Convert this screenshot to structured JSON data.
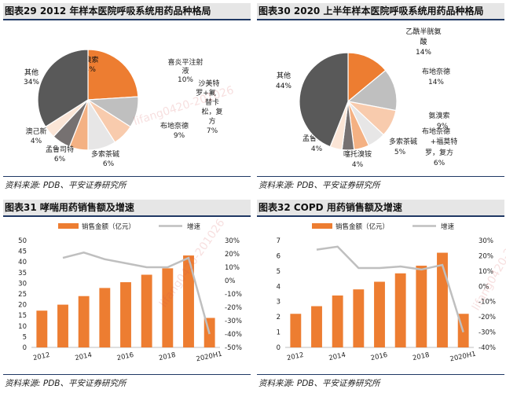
{
  "panels": [
    {
      "title": "图表29    2012 年样本医院呼吸系统用药品种格局",
      "source": "资料来源:  PDB、平安证券研究所"
    },
    {
      "title": "图表30    2020 上半年样本医院呼吸系统用药品种格局",
      "source": "资料来源:  PDB、平安证券研究所"
    },
    {
      "title": "图表31    哮喘用药销售额及增速",
      "source": "资料来源:  PDB、平安证券研究所"
    },
    {
      "title": "图表32    COPD 用药销售额及增速",
      "source": "资料来源:  PDB、平安证券研究所"
    }
  ],
  "watermark": "lifang0420-201026",
  "chart_data": [
    {
      "type": "pie",
      "slices": [
        {
          "label": "氨溴索",
          "pct": "24%",
          "value": 24,
          "color": "#ed7d31"
        },
        {
          "label": "喜炎平注射液",
          "pct": "10%",
          "value": 10,
          "color": "#bfbfbf"
        },
        {
          "label": "沙美特罗+氟替卡松，复方",
          "pct": "7%",
          "value": 7,
          "color": "#f8cbad"
        },
        {
          "label": "布地奈德",
          "pct": "9%",
          "value": 9,
          "color": "#e7e6e6"
        },
        {
          "label": "多索茶碱",
          "pct": "6%",
          "value": 6,
          "color": "#f4b183"
        },
        {
          "label": "孟鲁司特",
          "pct": "6%",
          "value": 6,
          "color": "#767171"
        },
        {
          "label": "澳己新",
          "pct": "4%",
          "value": 4,
          "color": "#fbe5d6"
        },
        {
          "label": "其他",
          "pct": "34%",
          "value": 34,
          "color": "#595959"
        }
      ]
    },
    {
      "type": "pie",
      "slices": [
        {
          "label": "乙酰半胱氨酸",
          "pct": "14%",
          "value": 14,
          "color": "#ed7d31"
        },
        {
          "label": "布地奈德",
          "pct": "14%",
          "value": 14,
          "color": "#bfbfbf"
        },
        {
          "label": "氨溴索",
          "pct": "9%",
          "value": 9,
          "color": "#f8cbad"
        },
        {
          "label": "布地奈德+福莫特罗，复方",
          "pct": "6%",
          "value": 6,
          "color": "#e7e6e6"
        },
        {
          "label": "多索茶碱",
          "pct": "5%",
          "value": 5,
          "color": "#f4b183"
        },
        {
          "label": "噻托溴铵",
          "pct": "4%",
          "value": 4,
          "color": "#767171"
        },
        {
          "label": "孟鲁司特",
          "pct": "4%",
          "value": 4,
          "color": "#fbe5d6"
        },
        {
          "label": "其他",
          "pct": "44%",
          "value": 44,
          "color": "#595959"
        }
      ]
    },
    {
      "type": "bar",
      "legend": {
        "bar": "销售金额（亿元）",
        "line": "增速"
      },
      "categories": [
        "2012",
        "2013",
        "2014",
        "2015",
        "2016",
        "2017",
        "2018",
        "2019",
        "2020H1"
      ],
      "xtick_labels": [
        "2012",
        "",
        "2014",
        "",
        "2016",
        "",
        "2018",
        "",
        "2020H1"
      ],
      "values": [
        17.2,
        20,
        24,
        27.8,
        30.5,
        34,
        37,
        43,
        13.8
      ],
      "growth": [
        null,
        0.17,
        0.21,
        0.16,
        0.13,
        0.1,
        0.1,
        0.17,
        -0.4
      ],
      "ylim": [
        0,
        50
      ],
      "yticks": [
        "0",
        "5",
        "10",
        "15",
        "20",
        "25",
        "30",
        "35",
        "40",
        "45",
        "50"
      ],
      "y2lim": [
        -0.5,
        0.3
      ],
      "y2ticks": [
        "-50%",
        "-40%",
        "-30%",
        "-20%",
        "-10%",
        "0%",
        "10%",
        "20%",
        "30%"
      ],
      "bar_color": "#ed7d31",
      "line_color": "#bfbfbf"
    },
    {
      "type": "bar",
      "legend": {
        "bar": "销售金额（亿元）",
        "line": "增速"
      },
      "categories": [
        "2012",
        "2013",
        "2014",
        "2015",
        "2016",
        "2017",
        "2018",
        "2019",
        "2020H1"
      ],
      "xtick_labels": [
        "2012",
        "",
        "2014",
        "",
        "2016",
        "",
        "2018",
        "",
        "2020H1"
      ],
      "values": [
        2.2,
        2.7,
        3.4,
        3.8,
        4.3,
        4.85,
        5.35,
        6.2,
        2.2
      ],
      "growth": [
        null,
        0.24,
        0.26,
        0.12,
        0.12,
        0.13,
        0.11,
        0.14,
        -0.3
      ],
      "ylim": [
        0,
        7
      ],
      "yticks": [
        "0",
        "1",
        "2",
        "3",
        "4",
        "5",
        "6",
        "7"
      ],
      "y2lim": [
        -0.4,
        0.3
      ],
      "y2ticks": [
        "-40%",
        "-30%",
        "-20%",
        "-10%",
        "0%",
        "10%",
        "20%",
        "30%"
      ],
      "bar_color": "#ed7d31",
      "line_color": "#bfbfbf"
    }
  ]
}
